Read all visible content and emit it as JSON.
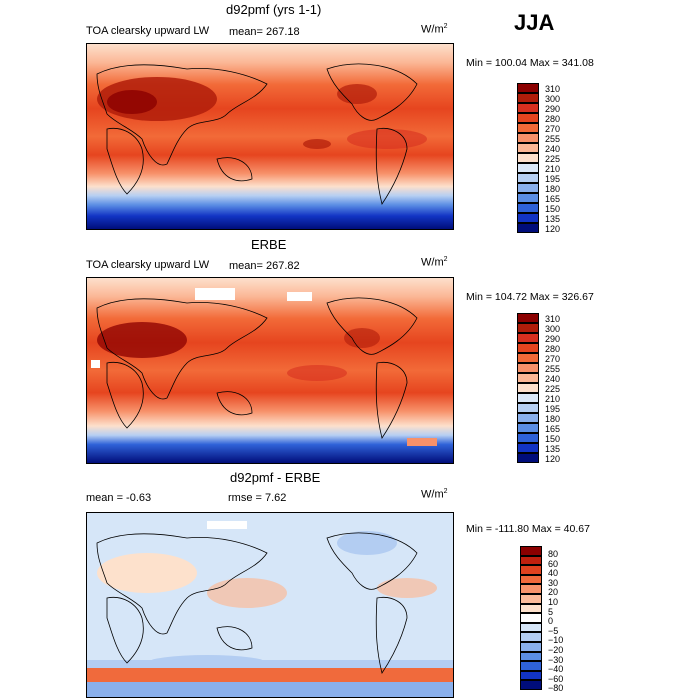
{
  "header": {
    "season": "JJA"
  },
  "panels": [
    {
      "id": "model",
      "title": "d92pmf (yrs 1-1)",
      "field": "TOA clearsky upward LW",
      "mean_label": "mean= 267.18",
      "units": "W/m",
      "units_sup": "2",
      "range_label": "Min = 100.04  Max = 341.08",
      "legend": [
        "310",
        "300",
        "290",
        "280",
        "270",
        "255",
        "240",
        "225",
        "210",
        "195",
        "180",
        "165",
        "150",
        "135",
        "120"
      ]
    },
    {
      "id": "obs",
      "title": "ERBE",
      "field": "TOA clearsky upward LW",
      "mean_label": "mean= 267.82",
      "units": "W/m",
      "units_sup": "2",
      "range_label": "Min = 104.72  Max = 326.67",
      "legend": [
        "310",
        "300",
        "290",
        "280",
        "270",
        "255",
        "240",
        "225",
        "210",
        "195",
        "180",
        "165",
        "150",
        "135",
        "120"
      ]
    },
    {
      "id": "diff",
      "title": "d92pmf - ERBE",
      "mean_label": "mean =   -0.63",
      "rmse_label": "rmse =    7.62",
      "units": "W/m",
      "units_sup": "2",
      "range_label": "Min = -111.80  Max =  40.67",
      "legend": [
        "80",
        "60",
        "40",
        "30",
        "20",
        "10",
        "5",
        "0",
        "−5",
        "−10",
        "−20",
        "−30",
        "−40",
        "−60",
        "−80"
      ]
    }
  ],
  "colors": {
    "abs_scale": [
      "#8b0000",
      "#b01d0a",
      "#d7301f",
      "#e6451f",
      "#f26a38",
      "#f7916a",
      "#fbb796",
      "#fde0cc",
      "#dbe8f8",
      "#b6cff2",
      "#8ab0ec",
      "#5b8ee4",
      "#2f62d8",
      "#1234c4",
      "#000d7a"
    ],
    "diff_scale": [
      "#8b0000",
      "#c0200e",
      "#e0421f",
      "#f06a3c",
      "#f7946c",
      "#fbbb9a",
      "#fde1cc",
      "#ffffff",
      "#d6e6f8",
      "#b3cdf2",
      "#8ab0ec",
      "#5b8ee4",
      "#2f62d8",
      "#1234c4",
      "#000d7a"
    ]
  }
}
